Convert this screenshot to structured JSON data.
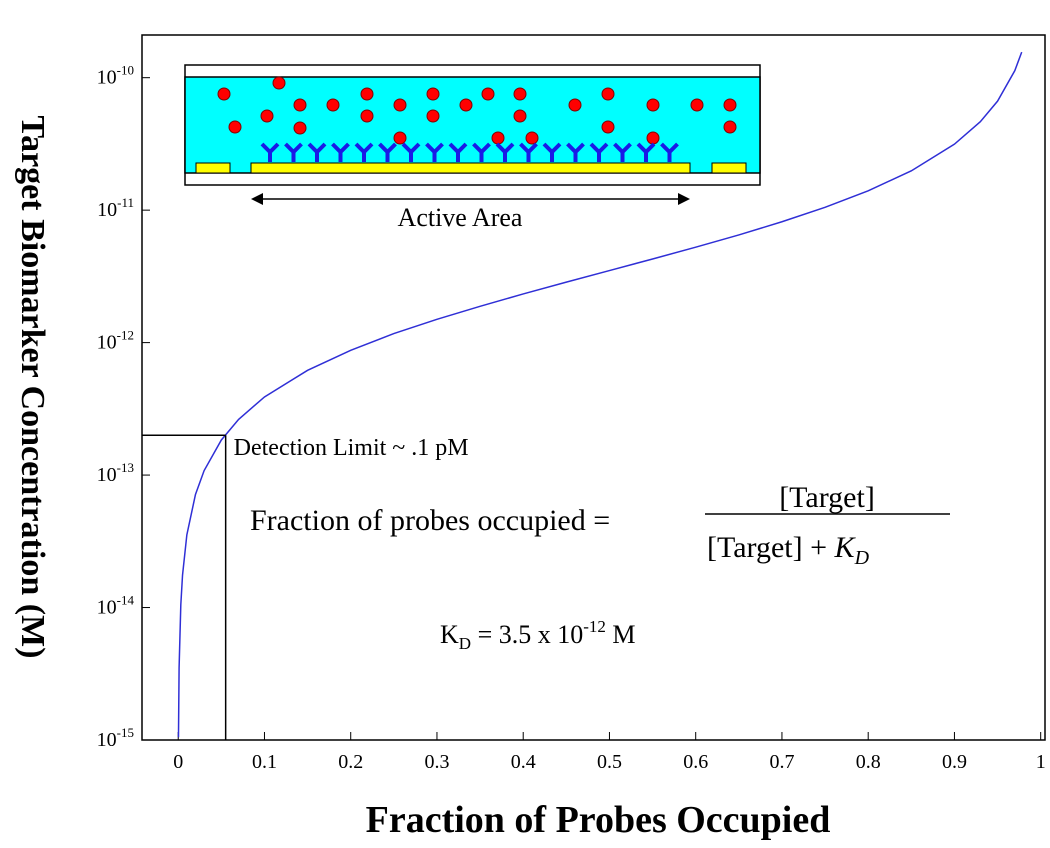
{
  "chart_data": {
    "type": "line",
    "x_label": "Fraction of Probes Occupied",
    "y_label": "Target Biomarker Concentration (M)",
    "log_y": true,
    "series": [
      {
        "color": "#2f2fd6",
        "x": [
          0.0003,
          0.001,
          0.003,
          0.005,
          0.01,
          0.02,
          0.03,
          0.05,
          0.07,
          0.1,
          0.15,
          0.2,
          0.25,
          0.3,
          0.35,
          0.4,
          0.45,
          0.5,
          0.55,
          0.6,
          0.65,
          0.7,
          0.75,
          0.8,
          0.85,
          0.9,
          0.93,
          0.95,
          0.97,
          0.978
        ],
        "values": [
          1.05e-15,
          3.5e-15,
          1.05e-14,
          1.76e-14,
          3.54e-14,
          7.14e-14,
          1.08e-13,
          1.84e-13,
          2.63e-13,
          3.89e-13,
          6.18e-13,
          8.75e-13,
          1.17e-12,
          1.5e-12,
          1.88e-12,
          2.33e-12,
          2.86e-12,
          3.5e-12,
          4.28e-12,
          5.25e-12,
          6.5e-12,
          8.17e-12,
          1.05e-11,
          1.4e-11,
          1.98e-11,
          3.15e-11,
          4.65e-11,
          6.65e-11,
          1.13e-10,
          1.56e-10
        ]
      }
    ],
    "xlim": [
      -0.042,
      1.005
    ],
    "xticks": [
      0,
      0.1,
      0.2,
      0.3,
      0.4,
      0.5,
      0.6,
      0.7,
      0.8,
      0.9,
      1
    ],
    "ylim": [
      1e-15,
      2.1e-10
    ],
    "yticks": [
      {
        "value": 1e-15,
        "label": "10-15"
      },
      {
        "value": 1e-14,
        "label": "10-14"
      },
      {
        "value": 1e-13,
        "label": "10-13"
      },
      {
        "value": 1e-12,
        "label": "10-12"
      },
      {
        "value": 1e-11,
        "label": "10-11"
      },
      {
        "value": 1e-10,
        "label": "10-10"
      }
    ],
    "detection_limit": {
      "x": 0.055,
      "y": 2e-13,
      "label": "Detection Limit ~ .1 pM"
    },
    "formula": {
      "lhs": "Fraction of probes occupied =",
      "numerator": "[Target]",
      "denominator": "[Target] + ",
      "denominator_k": "K",
      "denominator_sub": "D"
    },
    "kd_note": {
      "k": "K",
      "sub": "D",
      "mid": " = 3.5 x 10",
      "sup": "-12",
      "unit": " M"
    },
    "inset_caption": "Active Area"
  }
}
